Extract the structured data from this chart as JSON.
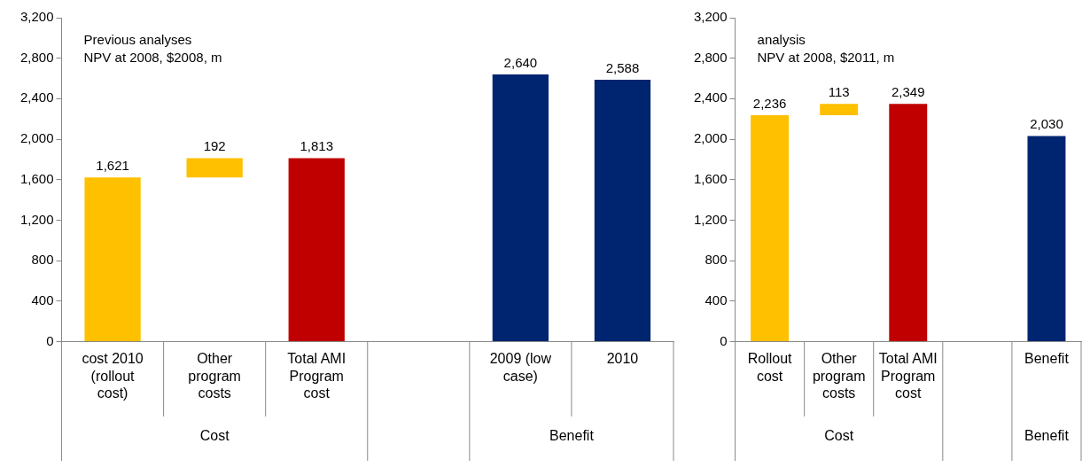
{
  "chart_data": [
    {
      "type": "bar",
      "categories": [
        "cost 2010 (rollout cost)",
        "Other program costs",
        "Total AMI Program cost",
        null,
        "2009 (low case)",
        "2010"
      ],
      "values": [
        1621,
        192,
        1813,
        null,
        2640,
        2588
      ],
      "base": [
        0,
        1621,
        0,
        null,
        0,
        0
      ],
      "colors": [
        "#ffc000",
        "#ffc000",
        "#c00000",
        "#ffffff",
        "#002570",
        "#002570"
      ],
      "value_labels": [
        "1,621",
        "192",
        "1,813",
        null,
        "2,640",
        "2,588"
      ],
      "ylim": [
        0,
        3200
      ],
      "yticks": [
        0,
        {
          "value": 400,
          "label": "400"
        },
        {
          "value": 800,
          "label": "800"
        },
        {
          "value": 1200,
          "label": "1,200"
        },
        {
          "value": 1600,
          "label": "1,600"
        },
        {
          "value": 2000,
          "label": "2,000"
        },
        {
          "value": 2400,
          "label": "2,400"
        },
        {
          "value": 2800,
          "label": "2,800"
        },
        {
          "value": 3200,
          "label": "3,200"
        }
      ],
      "annotations": [
        "Previous analyses\nNPV at 2008, $2008, m",
        "Cost",
        "Benefit"
      ]
    },
    {
      "type": "bar",
      "categories": [
        "Rollout cost",
        "Other program costs",
        "Total AMI Program cost",
        null,
        "Benefit"
      ],
      "values": [
        2236,
        113,
        2349,
        null,
        2030
      ],
      "base": [
        0,
        2236,
        0,
        null,
        0
      ],
      "colors": [
        "#ffc000",
        "#ffc000",
        "#c00000",
        "#ffffff",
        "#002570"
      ],
      "value_labels": [
        "2,236",
        "113",
        "2,349",
        null,
        "2,030"
      ],
      "ylim": [
        0,
        3200
      ],
      "yticks": [
        0,
        {
          "value": 400,
          "label": "400"
        },
        {
          "value": 800,
          "label": "800"
        },
        {
          "value": 1200,
          "label": "1,200"
        },
        {
          "value": 1600,
          "label": "1,600"
        },
        {
          "value": 2000,
          "label": "2,000"
        },
        {
          "value": 2400,
          "label": "2,400"
        },
        {
          "value": 2800,
          "label": "2,800"
        },
        {
          "value": 3200,
          "label": "3,200"
        }
      ],
      "annotations": [
        "analysis\nNPV at 2008, $2011, m",
        "Cost",
        "Benefit"
      ]
    }
  ]
}
